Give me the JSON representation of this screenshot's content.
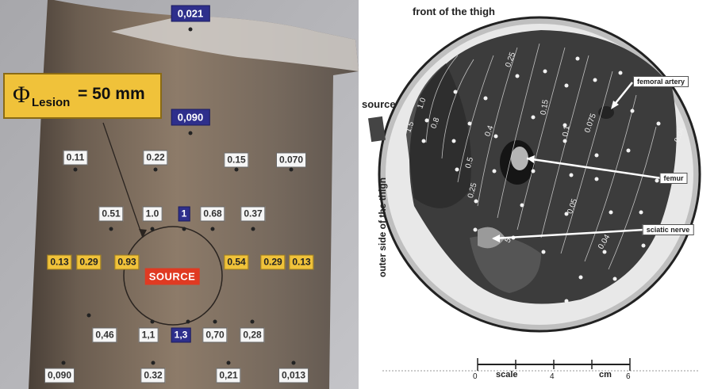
{
  "left_panel": {
    "lesion_label": {
      "symbol": "Φ",
      "subscript": "Lesion",
      "value": "= 50 mm"
    },
    "source_label": "SOURCE",
    "measurements": [
      {
        "text": "0,021",
        "style": "blue"
      },
      {
        "text": "0,090",
        "style": "blue"
      },
      {
        "text": "0.11",
        "style": "white"
      },
      {
        "text": "0.22",
        "style": "white"
      },
      {
        "text": "0.15",
        "style": "white"
      },
      {
        "text": "0.070",
        "style": "white"
      },
      {
        "text": "0.51",
        "style": "white"
      },
      {
        "text": "1.0",
        "style": "white"
      },
      {
        "text": "1",
        "style": "blue"
      },
      {
        "text": "0.68",
        "style": "white"
      },
      {
        "text": "0.37",
        "style": "white"
      },
      {
        "text": "0.13",
        "style": "yellow"
      },
      {
        "text": "0.29",
        "style": "yellow"
      },
      {
        "text": "0.93",
        "style": "yellow"
      },
      {
        "text": "0.54",
        "style": "yellow"
      },
      {
        "text": "0.29",
        "style": "yellow"
      },
      {
        "text": "0.13",
        "style": "yellow"
      },
      {
        "text": "0,46",
        "style": "white"
      },
      {
        "text": "1,1",
        "style": "white"
      },
      {
        "text": "1,3",
        "style": "blue"
      },
      {
        "text": "0,70",
        "style": "white"
      },
      {
        "text": "0,28",
        "style": "white"
      },
      {
        "text": "0,090",
        "style": "white"
      },
      {
        "text": "0.32",
        "style": "white"
      },
      {
        "text": "0,21",
        "style": "white"
      },
      {
        "text": "0,013",
        "style": "white"
      }
    ]
  },
  "right_panel": {
    "title": "front of the thigh",
    "side_label": "outer side of the thigh",
    "source_label": "source",
    "annotations": {
      "femoral_artery": "femoral artery",
      "femur": "femur",
      "sciatic_nerve": "sciatic nerve"
    },
    "isodose_labels": [
      "1.0",
      "1.5",
      "0.8",
      "0.5",
      "0.4",
      "0.25",
      "0.25",
      "0.15",
      "0.1",
      "0.075",
      "0.04",
      "0.05",
      "0.04",
      "5"
    ],
    "scale": {
      "label": "scale",
      "unit": "cm",
      "ticks": [
        "0",
        "4",
        "6"
      ]
    }
  },
  "colors": {
    "yellow_label": "#f0c23a",
    "blue_label": "#2e2f8c",
    "source_red": "#e03a22",
    "tissue_dark": "#3a3a3a",
    "skin_light": "#dcdcdc"
  }
}
